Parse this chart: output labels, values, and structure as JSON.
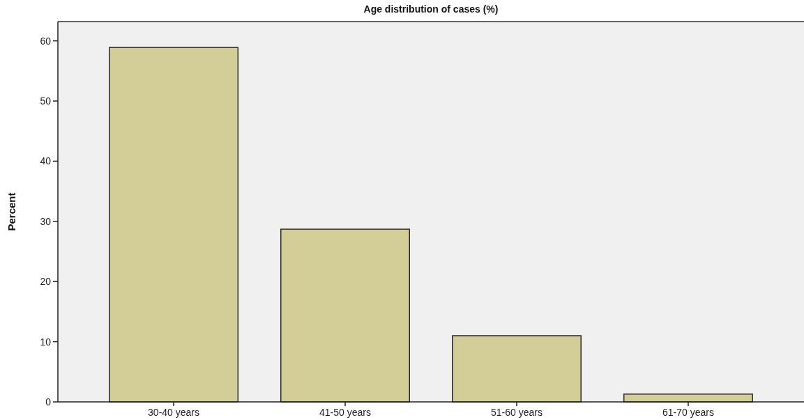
{
  "chart_data": {
    "type": "bar",
    "title": "Age distribution of cases (%)",
    "ylabel": "Percent",
    "categories": [
      "30-40 years",
      "41-50 years",
      "51-60 years",
      "61-70 years"
    ],
    "values": [
      58.9,
      28.7,
      11.0,
      1.3
    ],
    "color": "#d3ce97",
    "ylim": [
      0,
      63.2
    ],
    "yticks": [
      0,
      10,
      20,
      30,
      40,
      50,
      60
    ],
    "grid": false
  }
}
